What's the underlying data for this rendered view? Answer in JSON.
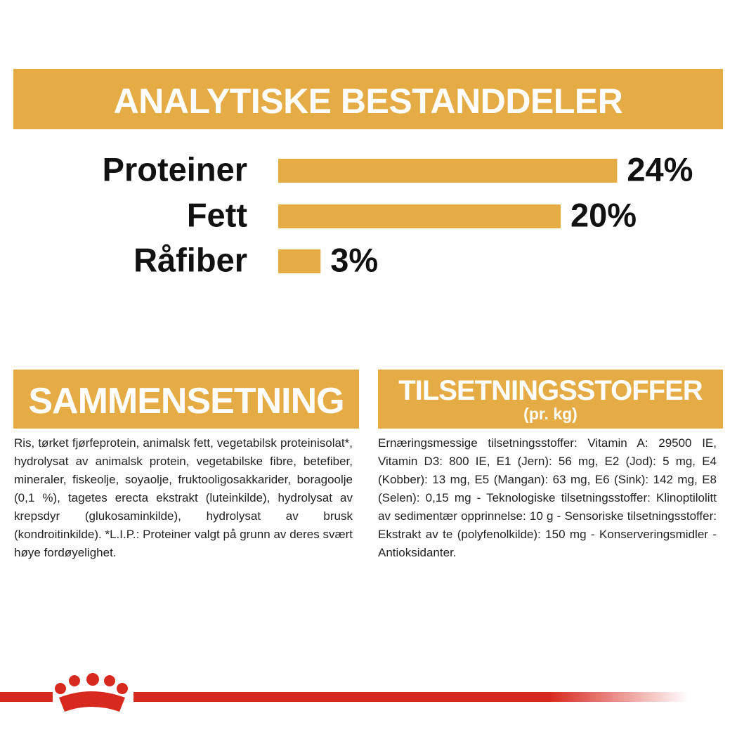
{
  "header": {
    "title": "ANALYTISKE BESTANDDELER"
  },
  "chart_data": {
    "type": "bar",
    "orientation": "horizontal",
    "categories": [
      "Proteiner",
      "Fett",
      "Råfiber"
    ],
    "values": [
      24,
      20,
      3
    ],
    "value_labels": [
      "24%",
      "20%",
      "3%"
    ],
    "color": "#e5ac46"
  },
  "composition": {
    "title": "SAMMENSETNING",
    "text": "Ris, tørket fjørfeprotein, animalsk fett, vegetabilsk proteinisolat*, hydrolysat av animalsk protein, vegetabilske fibre, betefiber, mineraler, fiskeolje, soyaolje, fruktooligosakkarider, boragoolje (0,1 %), tagetes erecta ekstrakt (luteinkilde), hydrolysat av krepsdyr (glukosaminkilde), hydrolysat av brusk (kondroitinkilde). *L.I.P.: Proteiner valgt på grunn av deres svært høye fordøyelighet."
  },
  "additives": {
    "title": "TILSETNINGSSTOFFER",
    "subtitle": "(pr. kg)",
    "text": "Ernæringsmessige tilsetningsstoffer: Vitamin A: 29500 IE, Vitamin D3: 800 IE, E1 (Jern): 56 mg, E2 (Jod): 5 mg, E4 (Kobber): 13 mg, E5 (Mangan): 63 mg, E6 (Sink): 142 mg, E8 (Selen): 0,15 mg - Teknologiske tilsetningsstoffer: Klinoptilolitt av sedimentær opprinnelse: 10 g - Sensoriske tilsetningsstoffer: Ekstrakt av te (polyfenolkilde): 150 mg - Konserveringsmidler - Antioksidanter."
  }
}
